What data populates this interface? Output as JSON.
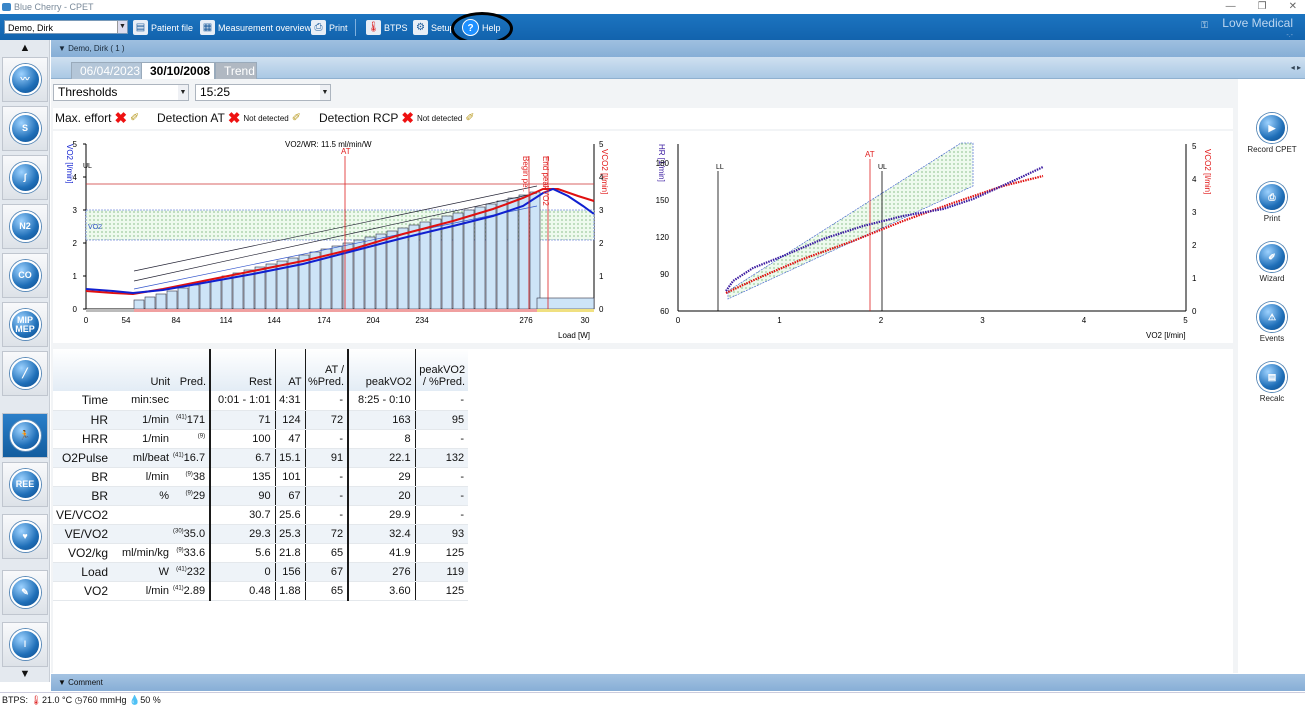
{
  "window": {
    "title": "Blue Cherry - CPET"
  },
  "toolbar": {
    "patient": "Demo, Dirk",
    "items": [
      "Patient file",
      "Measurement overview",
      "Print",
      "BTPS",
      "Setup",
      "Help"
    ],
    "brand": "Love Medical",
    "brand_sub": "-.-"
  },
  "patient_header": "Demo, Dirk ( 1 )",
  "tabs": {
    "prev": "06/04/2023",
    "current": "30/10/2008",
    "trend": "Trend"
  },
  "filters": {
    "view": "Thresholds",
    "time": "15:25"
  },
  "detection": {
    "max_effort": "Max. effort",
    "at": "Detection AT",
    "at_status": "Not detected",
    "rcp": "Detection RCP",
    "rcp_status": "Not detected"
  },
  "charts": [
    {
      "title": "VO2/WR: 11.5 ml/min/W",
      "left_axis": "VO2 [l/min]",
      "right_axis": "VCO2 [l/min]",
      "xlabel": "Load [W]",
      "x_ticks": [
        "0",
        "54",
        "84",
        "114",
        "144",
        "174",
        "204",
        "234",
        "276",
        "30"
      ],
      "y_ticks": [
        "0",
        "1",
        "2",
        "3",
        "4",
        "5"
      ],
      "ll": "UL",
      "at": "AT",
      "begin": "Begin pe..",
      "end": "End peakVO2",
      "band": "VO2"
    },
    {
      "left_axis": "HR [1/min]",
      "right_axis": "VCO2 [l/min]",
      "xlabel": "VO2 [l/min]",
      "x_ticks": [
        "0",
        "1",
        "2",
        "3",
        "4",
        "5"
      ],
      "y_ticks": [
        "60",
        "90",
        "120",
        "150",
        "180"
      ],
      "y2_ticks": [
        "0",
        "1",
        "2",
        "3",
        "4",
        "5"
      ],
      "ll": "LL",
      "ul": "UL",
      "at": "AT"
    }
  ],
  "table": {
    "headers": [
      "Unit",
      "Pred.",
      "Rest",
      "AT",
      "AT / %Pred.",
      "peakVO2",
      "peakVO2 / %Pred."
    ],
    "rows": [
      {
        "label": "Time",
        "unit": "min:sec",
        "ref": "",
        "pred": "",
        "rest": "0:01 - 1:01",
        "at": "4:31",
        "atp": "-",
        "peak": "8:25 - 0:10",
        "peakp": "-"
      },
      {
        "label": "HR",
        "unit": "1/min",
        "ref": "(41)",
        "pred": "171",
        "rest": "71",
        "at": "124",
        "atp": "72",
        "peak": "163",
        "peakp": "95"
      },
      {
        "label": "HRR",
        "unit": "1/min",
        "ref": "(9)",
        "pred": "",
        "rest": "100",
        "at": "47",
        "atp": "-",
        "peak": "8",
        "peakp": "-"
      },
      {
        "label": "O2Pulse",
        "unit": "ml/beat",
        "ref": "(41)",
        "pred": "16.7",
        "rest": "6.7",
        "at": "15.1",
        "atp": "91",
        "peak": "22.1",
        "peakp": "132"
      },
      {
        "label": "BR",
        "unit": "l/min",
        "ref": "(9)",
        "pred": "38",
        "rest": "135",
        "at": "101",
        "atp": "-",
        "peak": "29",
        "peakp": "-"
      },
      {
        "label": "BR",
        "unit": "%",
        "ref": "(9)",
        "pred": "29",
        "rest": "90",
        "at": "67",
        "atp": "-",
        "peak": "20",
        "peakp": "-"
      },
      {
        "label": "VE/VCO2",
        "unit": "",
        "ref": "",
        "pred": "",
        "rest": "30.7",
        "at": "25.6",
        "atp": "-",
        "peak": "29.9",
        "peakp": "-"
      },
      {
        "label": "VE/VO2",
        "unit": "",
        "ref": "(30)",
        "pred": "35.0",
        "rest": "29.3",
        "at": "25.3",
        "atp": "72",
        "peak": "32.4",
        "peakp": "93"
      },
      {
        "label": "VO2/kg",
        "unit": "ml/min/kg",
        "ref": "(9)",
        "pred": "33.6",
        "rest": "5.6",
        "at": "21.8",
        "atp": "65",
        "peak": "41.9",
        "peakp": "125"
      },
      {
        "label": "Load",
        "unit": "W",
        "ref": "(41)",
        "pred": "232",
        "rest": "0",
        "at": "156",
        "atp": "67",
        "peak": "276",
        "peakp": "119"
      },
      {
        "label": "VO2",
        "unit": "l/min",
        "ref": "(41)",
        "pred": "2.89",
        "rest": "0.48",
        "at": "1.88",
        "atp": "65",
        "peak": "3.60",
        "peakp": "125"
      }
    ]
  },
  "right_tools": [
    "Record CPET",
    "Print",
    "Wizard",
    "Events",
    "Recalc"
  ],
  "comment": "Comment",
  "status": {
    "label": "BTPS:",
    "temp": "21.0 °C",
    "pressure": "760 mmHg",
    "humidity": "50 %"
  }
}
